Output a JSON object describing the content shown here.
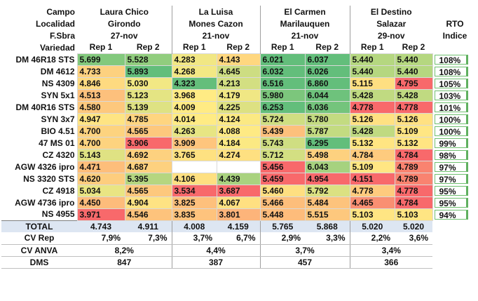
{
  "header": {
    "campo_label": "Campo",
    "localidad_label": "Localidad",
    "fsiembra_label": "F.Sbra",
    "variedad_label": "Variedad",
    "rto_label": "RTO",
    "indice_label": "Indice",
    "rep1": "Rep 1",
    "rep2": "Rep 2",
    "sites": [
      {
        "campo": "Laura Chico",
        "localidad": "Girondo",
        "fecha": "27-nov"
      },
      {
        "campo": "La Luisa",
        "localidad": "Mones Cazon",
        "fecha": "21-nov"
      },
      {
        "campo": "El Carmen",
        "localidad": "Marilauquen",
        "fecha": "21-nov"
      },
      {
        "campo": "El Destino",
        "localidad": "Salazar",
        "fecha": "29-nov"
      }
    ]
  },
  "rows": [
    {
      "variety": "DM 46R18 STS",
      "values": [
        "5.699",
        "5.528",
        "4.283",
        "4.143",
        "6.021",
        "6.037",
        "5.440",
        "5.440"
      ],
      "rto": "108%",
      "colors": [
        "#83c97d",
        "#91cd7e",
        "#f1e784",
        "#ffd77f",
        "#63be7b",
        "#63be7b",
        "#b5d780",
        "#b5d780"
      ]
    },
    {
      "variety": "DM 4612",
      "values": [
        "4.733",
        "5.893",
        "4.268",
        "4.645",
        "6.032",
        "6.026",
        "5.440",
        "5.440"
      ],
      "rto": "108%",
      "colors": [
        "#fdd17f",
        "#63be7b",
        "#f3e884",
        "#cddd82",
        "#63be7b",
        "#63be7b",
        "#b5d780",
        "#b5d780"
      ]
    },
    {
      "variety": "NS 4309",
      "values": [
        "4.846",
        "5.030",
        "4.323",
        "4.213",
        "6.516",
        "6.860",
        "5.115",
        "4.795"
      ],
      "rto": "105%",
      "colors": [
        "#feda80",
        "#f2e884",
        "#64be7b",
        "#d3df82",
        "#63be7b",
        "#63be7b",
        "#fedf81",
        "#f8696b"
      ]
    },
    {
      "variety": "SYN 5x1",
      "values": [
        "4.513",
        "5.123",
        "3.968",
        "4.179",
        "5.980",
        "6.044",
        "5.428",
        "5.428"
      ],
      "rto": "103%",
      "colors": [
        "#fdc07c",
        "#e4e483",
        "#ffeb84",
        "#f0e784",
        "#7cc67c",
        "#6ec27c",
        "#c0da81",
        "#c0da81"
      ]
    },
    {
      "variety": "DM 40R16 STS",
      "values": [
        "4.580",
        "5.139",
        "4.009",
        "4.225",
        "6.253",
        "6.036",
        "4.778",
        "4.778"
      ],
      "rto": "101%",
      "colors": [
        "#fdc87d",
        "#dee283",
        "#ffeb84",
        "#dde182",
        "#63be7b",
        "#74c47c",
        "#f8696b",
        "#f8696b"
      ]
    },
    {
      "variety": "SYN 3x7",
      "values": [
        "4.947",
        "4.785",
        "4.014",
        "4.124",
        "5.724",
        "5.780",
        "5.126",
        "5.126"
      ],
      "rto": "100%",
      "colors": [
        "#fee483",
        "#fed580",
        "#ffeb84",
        "#fbe983",
        "#cfde82",
        "#c3db81",
        "#ffe182",
        "#ffe182"
      ]
    },
    {
      "variety": "BIO 4.51",
      "values": [
        "4.700",
        "4.565",
        "4.263",
        "4.088",
        "5.439",
        "5.787",
        "5.428",
        "5.109"
      ],
      "rto": "100%",
      "colors": [
        "#fdd37f",
        "#fdc87d",
        "#e7e583",
        "#feea84",
        "#fdc07c",
        "#c3db81",
        "#c0da81",
        "#ffe683"
      ]
    },
    {
      "variety": "47 MS 01",
      "values": [
        "4.700",
        "3.906",
        "3.909",
        "4.184",
        "5.743",
        "6.295",
        "5.132",
        "5.132"
      ],
      "rto": "99%",
      "colors": [
        "#fdd37f",
        "#f8696b",
        "#fec57d",
        "#fbe983",
        "#cfde82",
        "#63be7b",
        "#ffe582",
        "#ffe582"
      ]
    },
    {
      "variety": "CZ 4320",
      "values": [
        "5.143",
        "4.692",
        "3.765",
        "4.274",
        "5.712",
        "5.498",
        "4.784",
        "4.784"
      ],
      "rto": "98%",
      "colors": [
        "#dfe283",
        "#fdd17f",
        "#fee181",
        "#fee081",
        "#d3df82",
        "#fdd17f",
        "#fecb7e",
        "#f8696b"
      ]
    },
    {
      "variety": "AGW 4326 ipro",
      "values": [
        "4.471",
        "4.687",
        "",
        "",
        "5.456",
        "6.043",
        "5.109",
        "4.789"
      ],
      "rto": "97%",
      "colors": [
        "#fdbe7b",
        "#fdd17f",
        "#ffffff",
        "#ffffff",
        "#f8696b",
        "#a6d27f",
        "#ffe683",
        "#f98370"
      ]
    },
    {
      "variety": "NS 3320 STS",
      "values": [
        "4.620",
        "5.395",
        "4.106",
        "4.439",
        "5.459",
        "4.954",
        "4.151",
        "4.789"
      ],
      "rto": "97%",
      "colors": [
        "#fdcd7e",
        "#b5d680",
        "#fee081",
        "#a9d27f",
        "#f8696b",
        "#f8696b",
        "#f8696b",
        "#f98370"
      ]
    },
    {
      "variety": "CZ 4918",
      "values": [
        "5.034",
        "4.565",
        "3.534",
        "3.687",
        "5.460",
        "5.792",
        "4.778",
        "4.778"
      ],
      "rto": "95%",
      "colors": [
        "#e9e583",
        "#fdc87d",
        "#f8696b",
        "#f8696b",
        "#fedf81",
        "#dbe182",
        "#fecb7e",
        "#f8696b"
      ]
    },
    {
      "variety": "AGW 4736 ipro",
      "values": [
        "4.450",
        "4.904",
        "3.825",
        "4.067",
        "5.466",
        "5.484",
        "4.465",
        "4.784"
      ],
      "rto": "95%",
      "colors": [
        "#fdbc7b",
        "#fee383",
        "#fec07c",
        "#ffe081",
        "#fdbe7b",
        "#fdc37c",
        "#f98f72",
        "#f8696b"
      ]
    },
    {
      "variety": "NS 4955",
      "values": [
        "3.971",
        "4.546",
        "3.835",
        "3.801",
        "5.448",
        "5.515",
        "5.103",
        "5.103"
      ],
      "rto": "94%",
      "colors": [
        "#f8696b",
        "#fdc37c",
        "#fec37d",
        "#fdb47a",
        "#fdbc7b",
        "#fdc87d",
        "#ffe583",
        "#ffe583"
      ]
    }
  ],
  "total": {
    "label": "TOTAL",
    "values": [
      "4.743",
      "4.911",
      "4.008",
      "4.159",
      "5.765",
      "5.868",
      "5.020",
      "5.020"
    ]
  },
  "cv_rep": {
    "label": "CV Rep",
    "values": [
      "7,9%",
      "7,3%",
      "3,7%",
      "6,7%",
      "2,9%",
      "3,3%",
      "2,2%",
      "3,6%"
    ]
  },
  "cv_anva": {
    "label": "CV ANVA",
    "values": [
      "8,2%",
      "4,4%",
      "3,7%",
      "3,4%"
    ]
  },
  "dms": {
    "label": "DMS",
    "values": [
      "847",
      "387",
      "457",
      "366"
    ]
  }
}
